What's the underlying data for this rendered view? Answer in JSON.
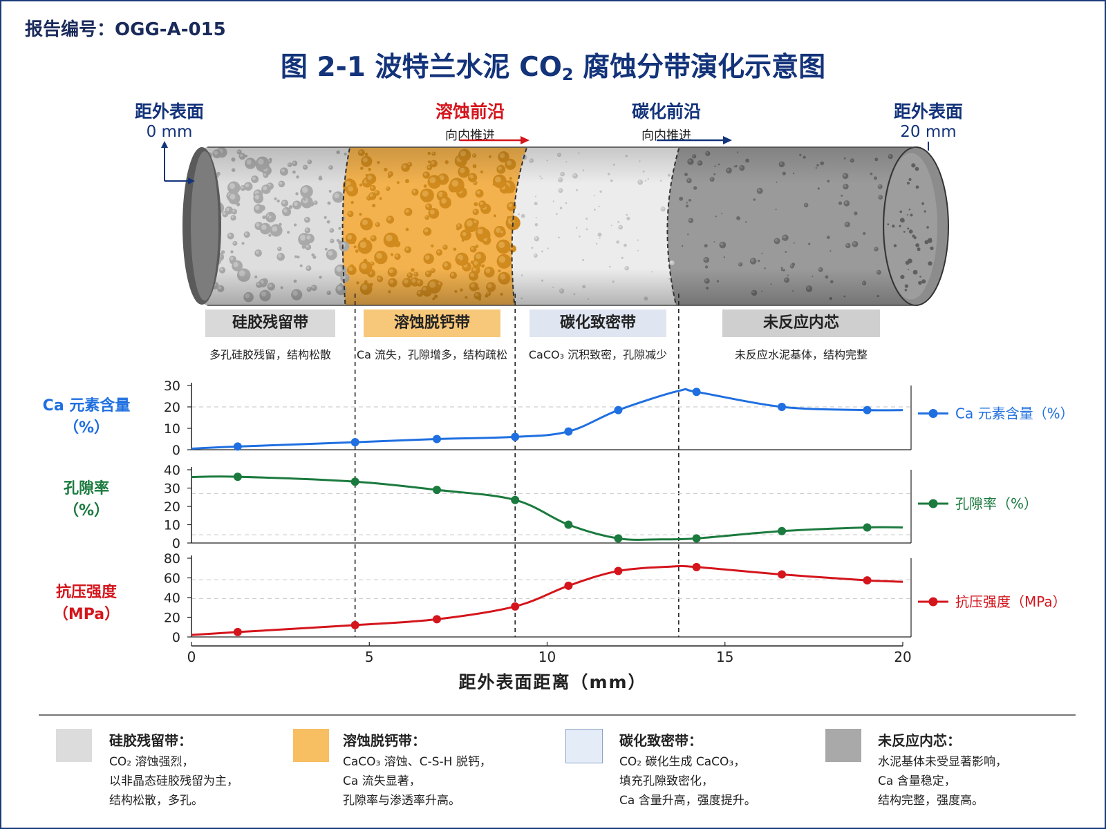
{
  "report_no": "报告编号：OGG-A-015",
  "title_prefix": "图 2-1    波特兰水泥 CO",
  "title_sub": "2",
  "title_suffix": " 腐蚀分带演化示意图",
  "ends": {
    "left": {
      "line1": "距外表面",
      "line2": "0 mm"
    },
    "right": {
      "line1": "距外表面",
      "line2": "20 mm"
    }
  },
  "fronts": {
    "dissolution": {
      "title": "溶蚀前沿",
      "sub": "向内推进",
      "color": "#d4151c"
    },
    "carbonation": {
      "title": "碳化前沿",
      "sub": "向内推进",
      "color": "#13337a"
    }
  },
  "zones": [
    {
      "name": "硅胶残留带",
      "desc": "多孔硅胶残留，结构松散",
      "tag_color": "#d9d9d9",
      "swatch": "#dcdcdc"
    },
    {
      "name": "溶蚀脱钙带",
      "desc": "Ca 流失，孔隙增多，结构疏松",
      "tag_color": "#f8c87a",
      "swatch": "#f7be62"
    },
    {
      "name": "碳化致密带",
      "desc": "CaCO₃ 沉积致密，孔隙减少",
      "tag_color": "#dfe6f1",
      "swatch": "#e3ecf7"
    },
    {
      "name": "未反应内芯",
      "desc": "未反应水泥基体，结构完整",
      "tag_color": "#cfcfcf",
      "swatch": "#a9a9a9"
    }
  ],
  "legend": [
    {
      "title": "硅胶残留带：",
      "lines": [
        "CO₂ 溶蚀强烈，",
        "以非晶态硅胶残留为主，",
        "结构松散，多孔。"
      ]
    },
    {
      "title": "溶蚀脱钙带：",
      "lines": [
        "CaCO₃ 溶蚀、C-S-H 脱钙，",
        "Ca 流失显著，",
        "孔隙率与渗透率升高。"
      ]
    },
    {
      "title": "碳化致密带：",
      "lines": [
        "CO₂ 碳化生成 CaCO₃，",
        "填充孔隙致密化，",
        "Ca 含量升高，强度提升。"
      ]
    },
    {
      "title": "未反应内芯：",
      "lines": [
        "水泥基体未受显著影响，",
        "Ca 含量稳定，",
        "结构完整，强度高。"
      ]
    }
  ],
  "chart_data": {
    "type": "line",
    "xlabel": "距外表面距离（mm）",
    "xlim": [
      0,
      20
    ],
    "xticks": [
      0,
      5,
      10,
      15,
      20
    ],
    "boundaries": [
      4.6,
      9.1,
      13.7
    ],
    "panels": [
      {
        "name": "Ca 元素含量（%）",
        "ylabel_lines": [
          "Ca 元素含量",
          "（%）"
        ],
        "color": "#1f6fe0",
        "ylim": [
          0,
          30
        ],
        "yticks": [
          0,
          10,
          20,
          30
        ],
        "ref_lines": [
          20
        ],
        "curve": [
          [
            0,
            0.5
          ],
          [
            1.3,
            1.5
          ],
          [
            4.6,
            3.5
          ],
          [
            6.9,
            5
          ],
          [
            9.1,
            6
          ],
          [
            10.6,
            8.5
          ],
          [
            12,
            18.5
          ],
          [
            13.7,
            27.5
          ],
          [
            14.2,
            27
          ],
          [
            16.6,
            20
          ],
          [
            19,
            18.5
          ],
          [
            20,
            18.5
          ]
        ],
        "markers": [
          [
            1.3,
            1.5
          ],
          [
            4.6,
            3.5
          ],
          [
            6.9,
            5
          ],
          [
            9.1,
            6
          ],
          [
            10.6,
            8.5
          ],
          [
            12,
            18.5
          ],
          [
            14.2,
            27
          ],
          [
            16.6,
            20
          ],
          [
            19,
            18.5
          ]
        ]
      },
      {
        "name": "孔隙率（%）",
        "ylabel_lines": [
          "孔隙率",
          "（%）"
        ],
        "color": "#1b7a3e",
        "ylim": [
          0,
          40
        ],
        "yticks": [
          0,
          10,
          20,
          30,
          40
        ],
        "ref_lines": [
          27,
          4.5
        ],
        "curve": [
          [
            0,
            36
          ],
          [
            1.3,
            36.2
          ],
          [
            4.6,
            33.5
          ],
          [
            6.9,
            29
          ],
          [
            9.1,
            23.5
          ],
          [
            10.6,
            10
          ],
          [
            12,
            2.5
          ],
          [
            13.2,
            2
          ],
          [
            14.2,
            2.5
          ],
          [
            16.6,
            6.5
          ],
          [
            19,
            8.5
          ],
          [
            20,
            8.5
          ]
        ],
        "markers": [
          [
            1.3,
            36.2
          ],
          [
            4.6,
            33.5
          ],
          [
            6.9,
            29
          ],
          [
            9.1,
            23.5
          ],
          [
            10.6,
            10
          ],
          [
            12,
            2.5
          ],
          [
            14.2,
            2.5
          ],
          [
            16.6,
            6.5
          ],
          [
            19,
            8.5
          ]
        ]
      },
      {
        "name": "抗压强度（MPa）",
        "ylabel_lines": [
          "抗压强度",
          "（MPa）"
        ],
        "color": "#d4151c",
        "ylim": [
          0,
          80
        ],
        "yticks": [
          0,
          20,
          40,
          60,
          80
        ],
        "ref_lines": [
          58,
          39
        ],
        "curve": [
          [
            0,
            2
          ],
          [
            1.3,
            5
          ],
          [
            4.6,
            12
          ],
          [
            6.9,
            18
          ],
          [
            9.1,
            31
          ],
          [
            10.6,
            52
          ],
          [
            12,
            67
          ],
          [
            13.5,
            71.5
          ],
          [
            14.2,
            71
          ],
          [
            16.6,
            63.5
          ],
          [
            19,
            57.5
          ],
          [
            20,
            56
          ]
        ],
        "markers": [
          [
            1.3,
            5
          ],
          [
            4.6,
            12
          ],
          [
            6.9,
            18
          ],
          [
            9.1,
            31
          ],
          [
            10.6,
            52
          ],
          [
            12,
            67
          ],
          [
            14.2,
            71
          ],
          [
            16.6,
            63.5
          ],
          [
            19,
            57.5
          ]
        ]
      }
    ]
  }
}
